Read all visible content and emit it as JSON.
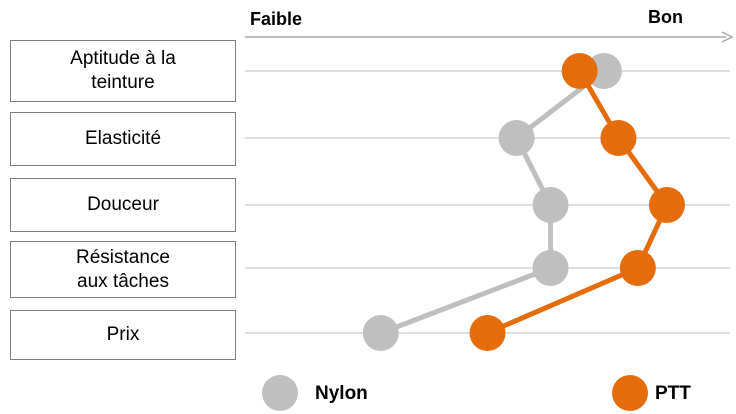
{
  "chart_data": {
    "type": "dot-line",
    "x_start_label": "Faible",
    "x_end_label": "Bon",
    "categories": [
      "Aptitude à la\nteinture",
      "Elasticité",
      "Douceur",
      "Résistance\naux tâches",
      "Prix"
    ],
    "xlim": [
      0,
      100
    ],
    "series": [
      {
        "name": "Nylon",
        "color": "#bfbfbf",
        "values": [
          74,
          56,
          63,
          63,
          28
        ]
      },
      {
        "name": "PTT",
        "color": "#e46c0a",
        "values": [
          69,
          77,
          87,
          81,
          50
        ]
      }
    ]
  }
}
